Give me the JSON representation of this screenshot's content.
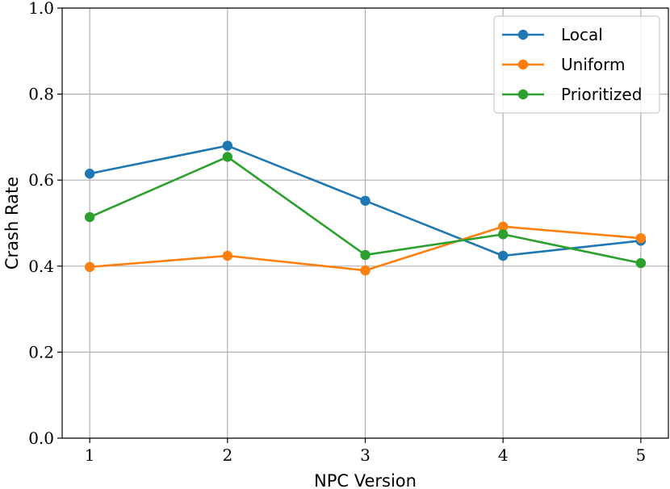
{
  "chart_data": {
    "type": "line",
    "x": [
      1,
      2,
      3,
      4,
      5
    ],
    "xticks": [
      "1",
      "2",
      "3",
      "4",
      "5"
    ],
    "xlim": [
      0.8,
      5.2
    ],
    "ylim": [
      0.0,
      1.0
    ],
    "yticks": [
      "0.0",
      "0.2",
      "0.4",
      "0.6",
      "0.8",
      "1.0"
    ],
    "xlabel": "NPC Version",
    "ylabel": "Crash Rate",
    "grid": true,
    "legend_position": "top-right",
    "series": [
      {
        "name": "Local",
        "color": "#1f77b4",
        "values": [
          0.615,
          0.68,
          0.552,
          0.424,
          0.459
        ]
      },
      {
        "name": "Uniform",
        "color": "#ff7f0e",
        "values": [
          0.398,
          0.424,
          0.39,
          0.492,
          0.465
        ]
      },
      {
        "name": "Prioritized",
        "color": "#2ca02c",
        "values": [
          0.514,
          0.654,
          0.426,
          0.474,
          0.407
        ]
      }
    ]
  }
}
